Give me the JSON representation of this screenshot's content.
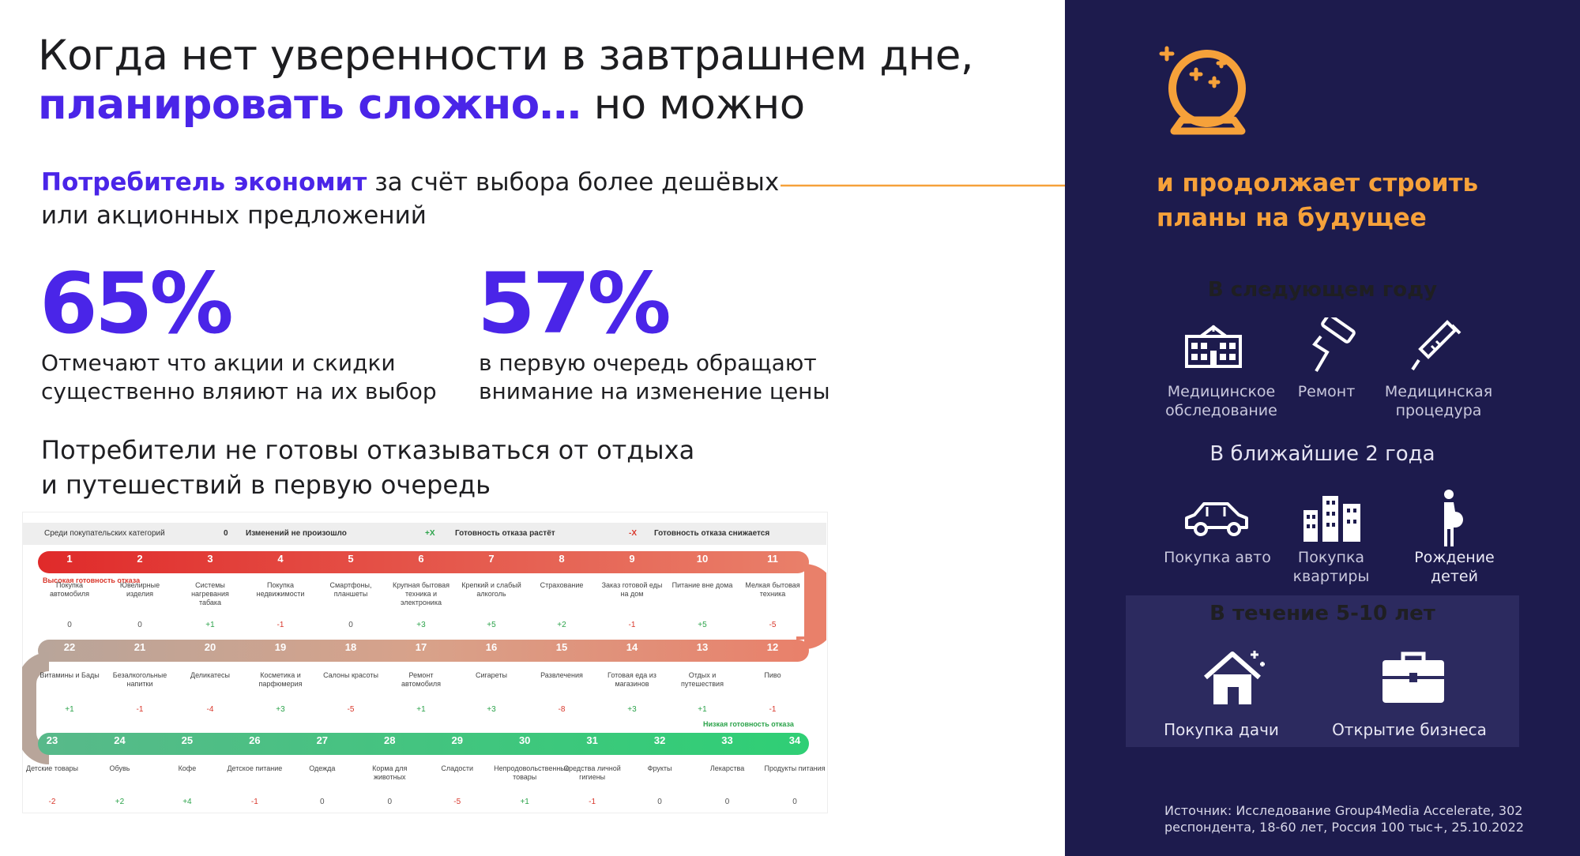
{
  "title": {
    "line1": "Когда нет уверенности в завтрашнем дне,",
    "accent": "планировать сложно…",
    "tail": " но можно"
  },
  "subtitle": {
    "bold": "Потребитель экономит",
    "rest1": " за счёт выбора более дешёвых",
    "rest2": "или акционных предложений"
  },
  "stats": [
    {
      "value": "65%",
      "desc1": "Отмечают что акции и скидки",
      "desc2": "существенно вляиют на их выбор"
    },
    {
      "value": "57%",
      "desc1": "в первую очередь обращают",
      "desc2": "внимание на изменение цены"
    }
  ],
  "heading2": {
    "line1": "Потребители не готовы отказываться от отдыха",
    "line2": "и путешествий в первую очередь"
  },
  "table": {
    "legend": {
      "intro": "Среди покупательских категорий",
      "zero_sym": "0",
      "zero": "Изменений не произошло",
      "up_sym": "+X",
      "up": "Готовность отказа растёт",
      "down_sym": "-X",
      "down": "Готовность отказа снижается"
    },
    "high_label": "Высокая готовность отказа",
    "low_label": "Низкая готовность отказа",
    "rows": [
      {
        "items": [
          [
            "1",
            "Покупка автомобиля",
            "0"
          ],
          [
            "2",
            "Ювелирные изделия",
            "0"
          ],
          [
            "3",
            "Системы нагревания табака",
            "+1"
          ],
          [
            "4",
            "Покупка недвижимости",
            "-1"
          ],
          [
            "5",
            "Смартфоны, планшеты",
            "0"
          ],
          [
            "6",
            "Крупная бытовая техника и электроника",
            "+3"
          ],
          [
            "7",
            "Крепкий и слабый алкоголь",
            "+5"
          ],
          [
            "8",
            "Страхование",
            "+2"
          ],
          [
            "9",
            "Заказ готовой еды на дом",
            "-1"
          ],
          [
            "10",
            "Питание вне дома",
            "+5"
          ],
          [
            "11",
            "Мелкая бытовая техника",
            "-5"
          ]
        ]
      },
      {
        "items": [
          [
            "22",
            "Витамины и Бады",
            "+1"
          ],
          [
            "21",
            "Безалкогольные напитки",
            "-1"
          ],
          [
            "20",
            "Деликатесы",
            "-4"
          ],
          [
            "19",
            "Косметика и парфюмерия",
            "+3"
          ],
          [
            "18",
            "Салоны красоты",
            "-5"
          ],
          [
            "17",
            "Ремонт автомобиля",
            "+1"
          ],
          [
            "16",
            "Сигареты",
            "+3"
          ],
          [
            "15",
            "Развлечения",
            "-8"
          ],
          [
            "14",
            "Готовая еда из магазинов",
            "+3"
          ],
          [
            "13",
            "Отдых и путешествия",
            "+1"
          ],
          [
            "12",
            "Пиво",
            "-1"
          ]
        ]
      },
      {
        "items": [
          [
            "23",
            "Детские товары",
            "-2"
          ],
          [
            "24",
            "Обувь",
            "+2"
          ],
          [
            "25",
            "Кофе",
            "+4"
          ],
          [
            "26",
            "Детское питание",
            "-1"
          ],
          [
            "27",
            "Одежда",
            "0"
          ],
          [
            "28",
            "Корма для животных",
            "0"
          ],
          [
            "29",
            "Сладости",
            "-5"
          ],
          [
            "30",
            "Непродовольственные товары",
            "+1"
          ],
          [
            "31",
            "Средства личной гигиены",
            "-1"
          ],
          [
            "32",
            "Фрукты",
            "0"
          ],
          [
            "33",
            "Лекарства",
            "0"
          ],
          [
            "34",
            "Продукты питания",
            "0"
          ]
        ]
      }
    ]
  },
  "right": {
    "headline1": "и продолжает строить",
    "headline2": "планы на будущее",
    "next_year": "В следующем году",
    "next_year_items": [
      {
        "label1": "Медицинское",
        "label2": "обследование",
        "icon": "hospital-icon"
      },
      {
        "label1": "Ремонт",
        "label2": "",
        "icon": "paint-roller-icon"
      },
      {
        "label1": "Медицинская",
        "label2": "процедура",
        "icon": "syringe-icon"
      }
    ],
    "two_years": "В ближайшие 2 года",
    "two_years_items": [
      {
        "label1": "Покупка авто",
        "label2": "",
        "icon": "car-icon"
      },
      {
        "label1": "Покупка",
        "label2": "квартиры",
        "icon": "buildings-icon"
      },
      {
        "label1": "Рождение",
        "label2": "детей",
        "icon": "pregnant-icon"
      }
    ],
    "five_ten": "В течение 5-10 лет",
    "five_ten_items": [
      {
        "label": "Покупка дачи",
        "icon": "house-icon"
      },
      {
        "label": "Открытие бизнеса",
        "icon": "briefcase-icon"
      }
    ],
    "source1": "Источник: Исследование Group4Media Accelerate, 302",
    "source2": "респондента, 18-60 лет, Россия 100 тыс+, 25.10.2022"
  },
  "colors": {
    "accent": "#4a25e8",
    "orange": "#f6a13a",
    "panel": "#1d1b4d",
    "panel_box": "#2c2a5f"
  }
}
